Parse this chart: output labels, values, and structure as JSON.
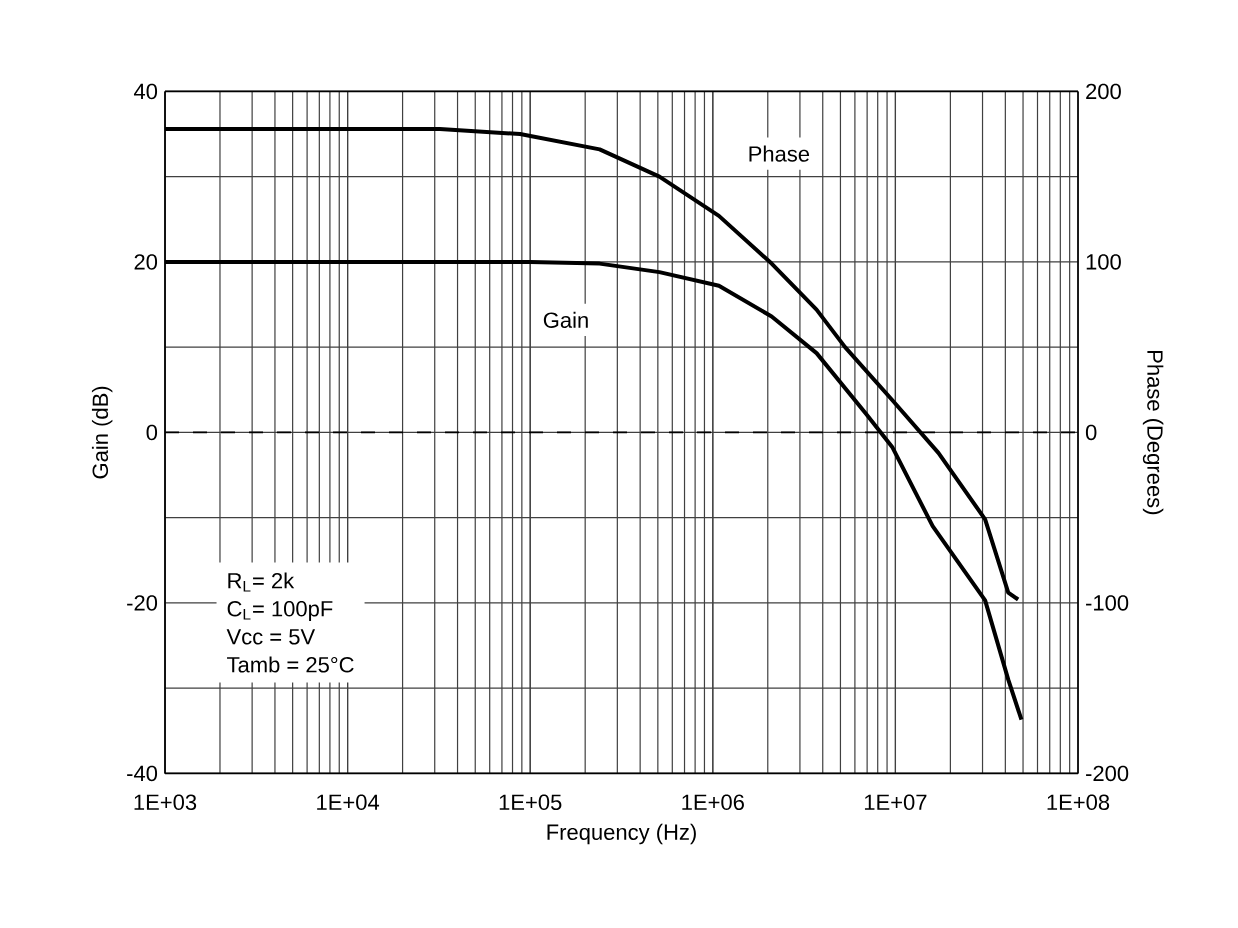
{
  "chart_data": {
    "type": "line",
    "xlabel": "Frequency (Hz)",
    "ylabel": "Gain (dB)",
    "y2label": "Phase (Degrees)",
    "log": "x",
    "grid": true,
    "line_style": "solid",
    "xlim": [
      1000,
      100000000
    ],
    "xticks": [
      {
        "value": 1000,
        "label": "1E+03"
      },
      {
        "value": 10000,
        "label": "1E+04"
      },
      {
        "value": 100000,
        "label": "1E+05"
      },
      {
        "value": 1000000,
        "label": "1E+06"
      },
      {
        "value": 10000000,
        "label": "1E+07"
      },
      {
        "value": 100000000,
        "label": "1E+08"
      }
    ],
    "ylim": [
      -40,
      40
    ],
    "yticks": [
      -40,
      -20,
      0,
      20,
      40
    ],
    "y2lim": [
      -200,
      200
    ],
    "y2ticks": [
      -200,
      -100,
      0,
      100,
      200
    ],
    "series": [
      {
        "color": "#000000",
        "x": [
          1000,
          10000,
          100000,
          240000,
          510000,
          1080000,
          2100000,
          3700000,
          6900000,
          9600000,
          16000000,
          31000000,
          41500000,
          49000000
        ],
        "values": [
          20,
          20,
          20,
          19.8,
          18.8,
          17.2,
          13.6,
          9.3,
          2.2,
          -1.7,
          -11,
          -19.7,
          -29,
          -33.7
        ]
      },
      {
        "color": "#000000",
        "axis": "y2",
        "x": [
          1000,
          10000,
          32000,
          88000,
          240000,
          510000,
          1080000,
          2100000,
          3700000,
          5300000,
          9600000,
          17200000,
          31000000,
          41500000,
          47000000
        ],
        "values": [
          178,
          178,
          178,
          175,
          166,
          150,
          127,
          99,
          72,
          50,
          19,
          -12,
          -51,
          -94,
          -98
        ]
      }
    ],
    "ref_lines": [
      {
        "axis": "y",
        "value": 0,
        "line_style": "dashed",
        "color": "#000000"
      }
    ],
    "annotations": [
      {
        "text": "Gain",
        "x": 157000,
        "y": 13.2
      },
      {
        "text": "Phase",
        "x": 2300000,
        "y": 32.7
      },
      "R$_{L}$= 2k",
      "C$_{L}$= 100pF",
      "Vcc = 5V",
      "Tamb = 25°C"
    ]
  }
}
